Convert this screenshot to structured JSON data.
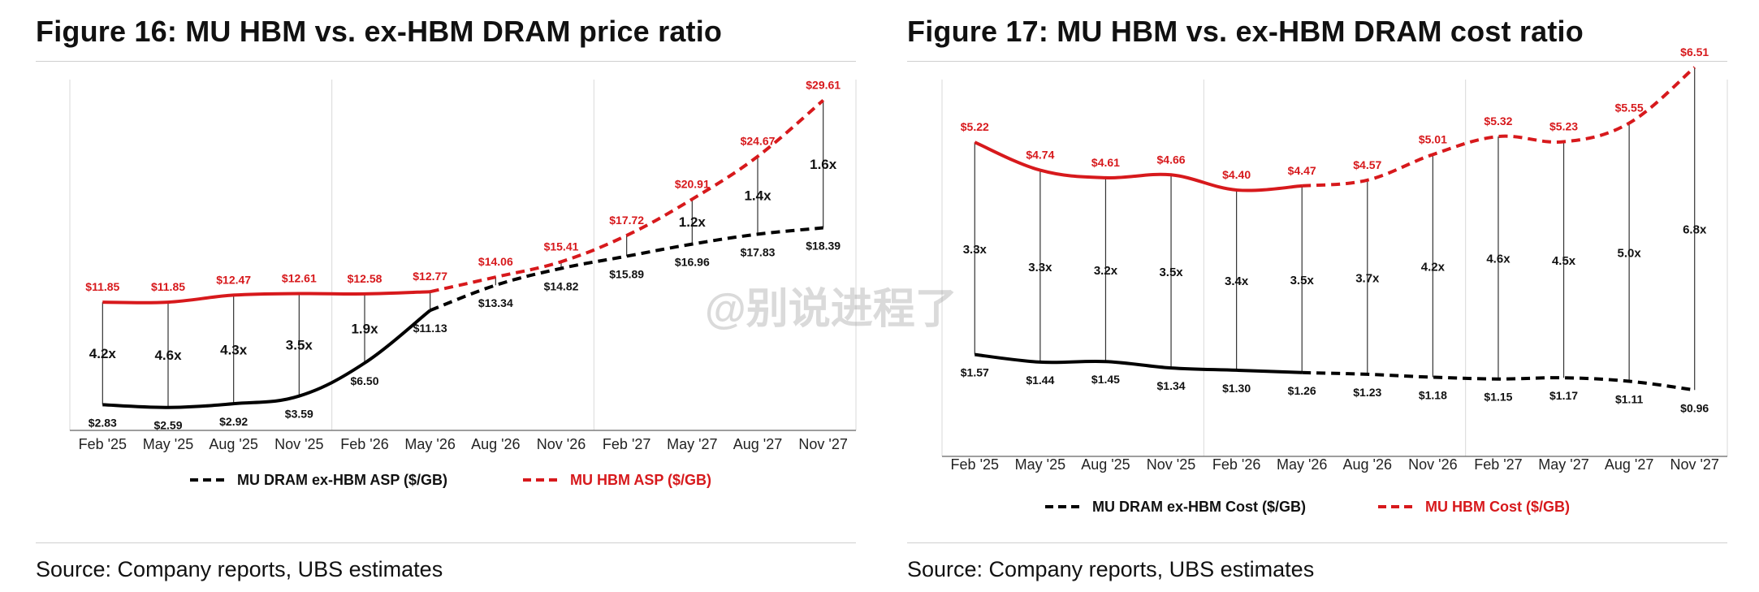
{
  "colors": {
    "red": "#d7191c",
    "black": "#000000",
    "grid": "#d9d9d9",
    "axis": "#7f7f7f"
  },
  "watermark": "@别说进程了",
  "chart_data": [
    {
      "type": "line",
      "title": "Figure 16: MU HBM vs. ex-HBM DRAM price ratio",
      "source": "Source: Company reports, UBS estimates",
      "categories": [
        "Feb '25",
        "May '25",
        "Aug '25",
        "Nov '25",
        "Feb '26",
        "May '26",
        "Aug '26",
        "Nov '26",
        "Feb '27",
        "May '27",
        "Aug '27",
        "Nov '27"
      ],
      "ylim": [
        0,
        34
      ],
      "grid": "vertical year separators",
      "legend": "bottom",
      "actual_through": "May '26",
      "series": [
        {
          "name": "MU DRAM ex-HBM ASP ($/GB)",
          "color": "#000000",
          "values": [
            2.83,
            2.59,
            2.92,
            3.59,
            6.5,
            11.13,
            13.34,
            14.82,
            15.89,
            16.96,
            17.83,
            18.39
          ],
          "labels": [
            "$2.83",
            "$2.59",
            "$2.92",
            "$3.59",
            "$6.50",
            "$11.13",
            "$13.34",
            "$14.82",
            "$15.89",
            "$16.96",
            "$17.83",
            "$18.39"
          ]
        },
        {
          "name": "MU HBM ASP ($/GB)",
          "color": "#d7191c",
          "values": [
            11.85,
            11.85,
            12.47,
            12.61,
            12.58,
            12.77,
            14.06,
            15.41,
            17.72,
            20.91,
            24.67,
            29.61
          ],
          "labels": [
            "$11.85",
            "$11.85",
            "$12.47",
            "$12.61",
            "$12.58",
            "$12.77",
            "$14.06",
            "$15.41",
            "$17.72",
            "$20.91",
            "$24.67",
            "$29.61"
          ]
        }
      ],
      "ratios": [
        "4.2x",
        "4.6x",
        "4.3x",
        "3.5x",
        "1.9x",
        "",
        "",
        "",
        "",
        "1.2x",
        "1.4x",
        "1.6x"
      ]
    },
    {
      "type": "line",
      "title": "Figure 17: MU HBM vs. ex-HBM DRAM cost ratio",
      "source": "Source: Company reports, UBS estimates",
      "categories": [
        "Feb '25",
        "May '25",
        "Aug '25",
        "Nov '25",
        "Feb '26",
        "May '26",
        "Aug '26",
        "Nov '26",
        "Feb '27",
        "May '27",
        "Aug '27",
        "Nov '27"
      ],
      "ylim": [
        0,
        7.6
      ],
      "grid": "vertical year separators",
      "legend": "bottom",
      "actual_through": "May '26",
      "series": [
        {
          "name": "MU DRAM ex-HBM Cost ($/GB)",
          "color": "#000000",
          "values": [
            1.57,
            1.44,
            1.45,
            1.34,
            1.3,
            1.26,
            1.23,
            1.18,
            1.15,
            1.17,
            1.11,
            0.96
          ],
          "labels": [
            "$1.57",
            "$1.44",
            "$1.45",
            "$1.34",
            "$1.30",
            "$1.26",
            "$1.23",
            "$1.18",
            "$1.15",
            "$1.17",
            "$1.11",
            "$0.96"
          ]
        },
        {
          "name": "MU HBM Cost ($/GB)",
          "color": "#d7191c",
          "values": [
            5.22,
            4.74,
            4.61,
            4.66,
            4.4,
            4.47,
            4.57,
            5.01,
            5.32,
            5.23,
            5.55,
            6.51
          ],
          "labels": [
            "$5.22",
            "$4.74",
            "$4.61",
            "$4.66",
            "$4.40",
            "$4.47",
            "$4.57",
            "$5.01",
            "$5.32",
            "$5.23",
            "$5.55",
            "$6.51"
          ]
        }
      ],
      "ratios": [
        "3.3x",
        "3.3x",
        "3.2x",
        "3.5x",
        "3.4x",
        "3.5x",
        "3.7x",
        "4.2x",
        "4.6x",
        "4.5x",
        "5.0x",
        "6.8x"
      ]
    }
  ]
}
